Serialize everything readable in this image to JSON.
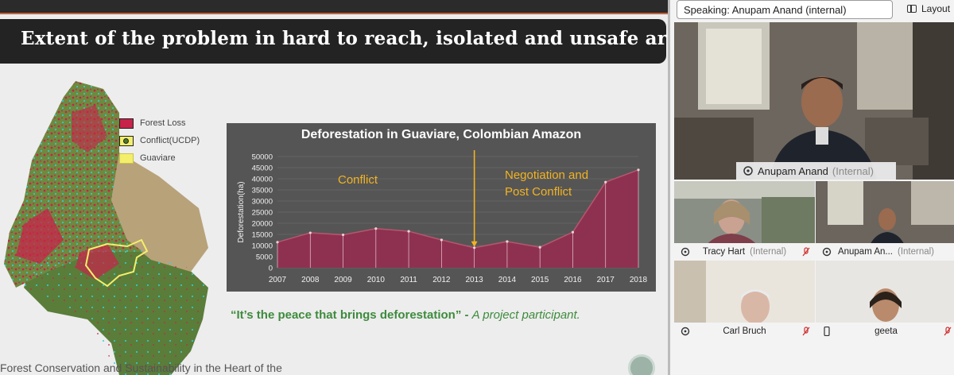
{
  "slide": {
    "title": "Extent of the problem in hard to reach, isolated and unsafe areas",
    "legend": [
      {
        "label": "Forest Loss",
        "color": "#c8234a"
      },
      {
        "label": "Conflict(UCDP)",
        "color": "#4a7a2c"
      },
      {
        "label": "Guaviare",
        "color": "#f3ef6a"
      }
    ],
    "quote": "“It’s the peace that brings deforestation”",
    "quote_sep": " - ",
    "quote_attribution": "A project participant.",
    "footer": "Forest Conservation and Sustainability in the Heart of the"
  },
  "chart_data": {
    "type": "area",
    "title": "Deforestation in Guaviare, Colombian Amazon",
    "ylabel": "Deforestation(ha)",
    "xlabel": "",
    "x": [
      2007,
      2008,
      2009,
      2010,
      2011,
      2012,
      2013,
      2014,
      2015,
      2016,
      2017,
      2018
    ],
    "values": [
      11500,
      15700,
      14800,
      17600,
      16400,
      12500,
      9000,
      11800,
      9200,
      16000,
      38500,
      44000
    ],
    "ylim": [
      0,
      50000
    ],
    "yticks": [
      0,
      5000,
      10000,
      15000,
      20000,
      25000,
      30000,
      35000,
      40000,
      45000,
      50000
    ],
    "grid": true,
    "annotations": [
      {
        "text": "Conflict",
        "color": "#f2b321"
      },
      {
        "text": "Negotiation and",
        "color": "#f2b321"
      },
      {
        "text": "Post Conflict",
        "color": "#f2b321"
      }
    ],
    "marker_year": 2013,
    "fill_color": "#8e3150",
    "line_color": "#b7566f"
  },
  "meeting": {
    "speaking_label": "Speaking: Anupam Anand (internal)",
    "layout_label": "Layout",
    "main_speaker": {
      "name": "Anupam Anand",
      "tag": "(Internal)"
    },
    "participants": [
      {
        "name": "Tracy Hart",
        "tag": "(Internal)"
      },
      {
        "name": "Anupam An...",
        "tag": "(Internal)"
      },
      {
        "name": "Carl Bruch",
        "tag": ""
      },
      {
        "name": "geeta",
        "tag": ""
      }
    ]
  }
}
